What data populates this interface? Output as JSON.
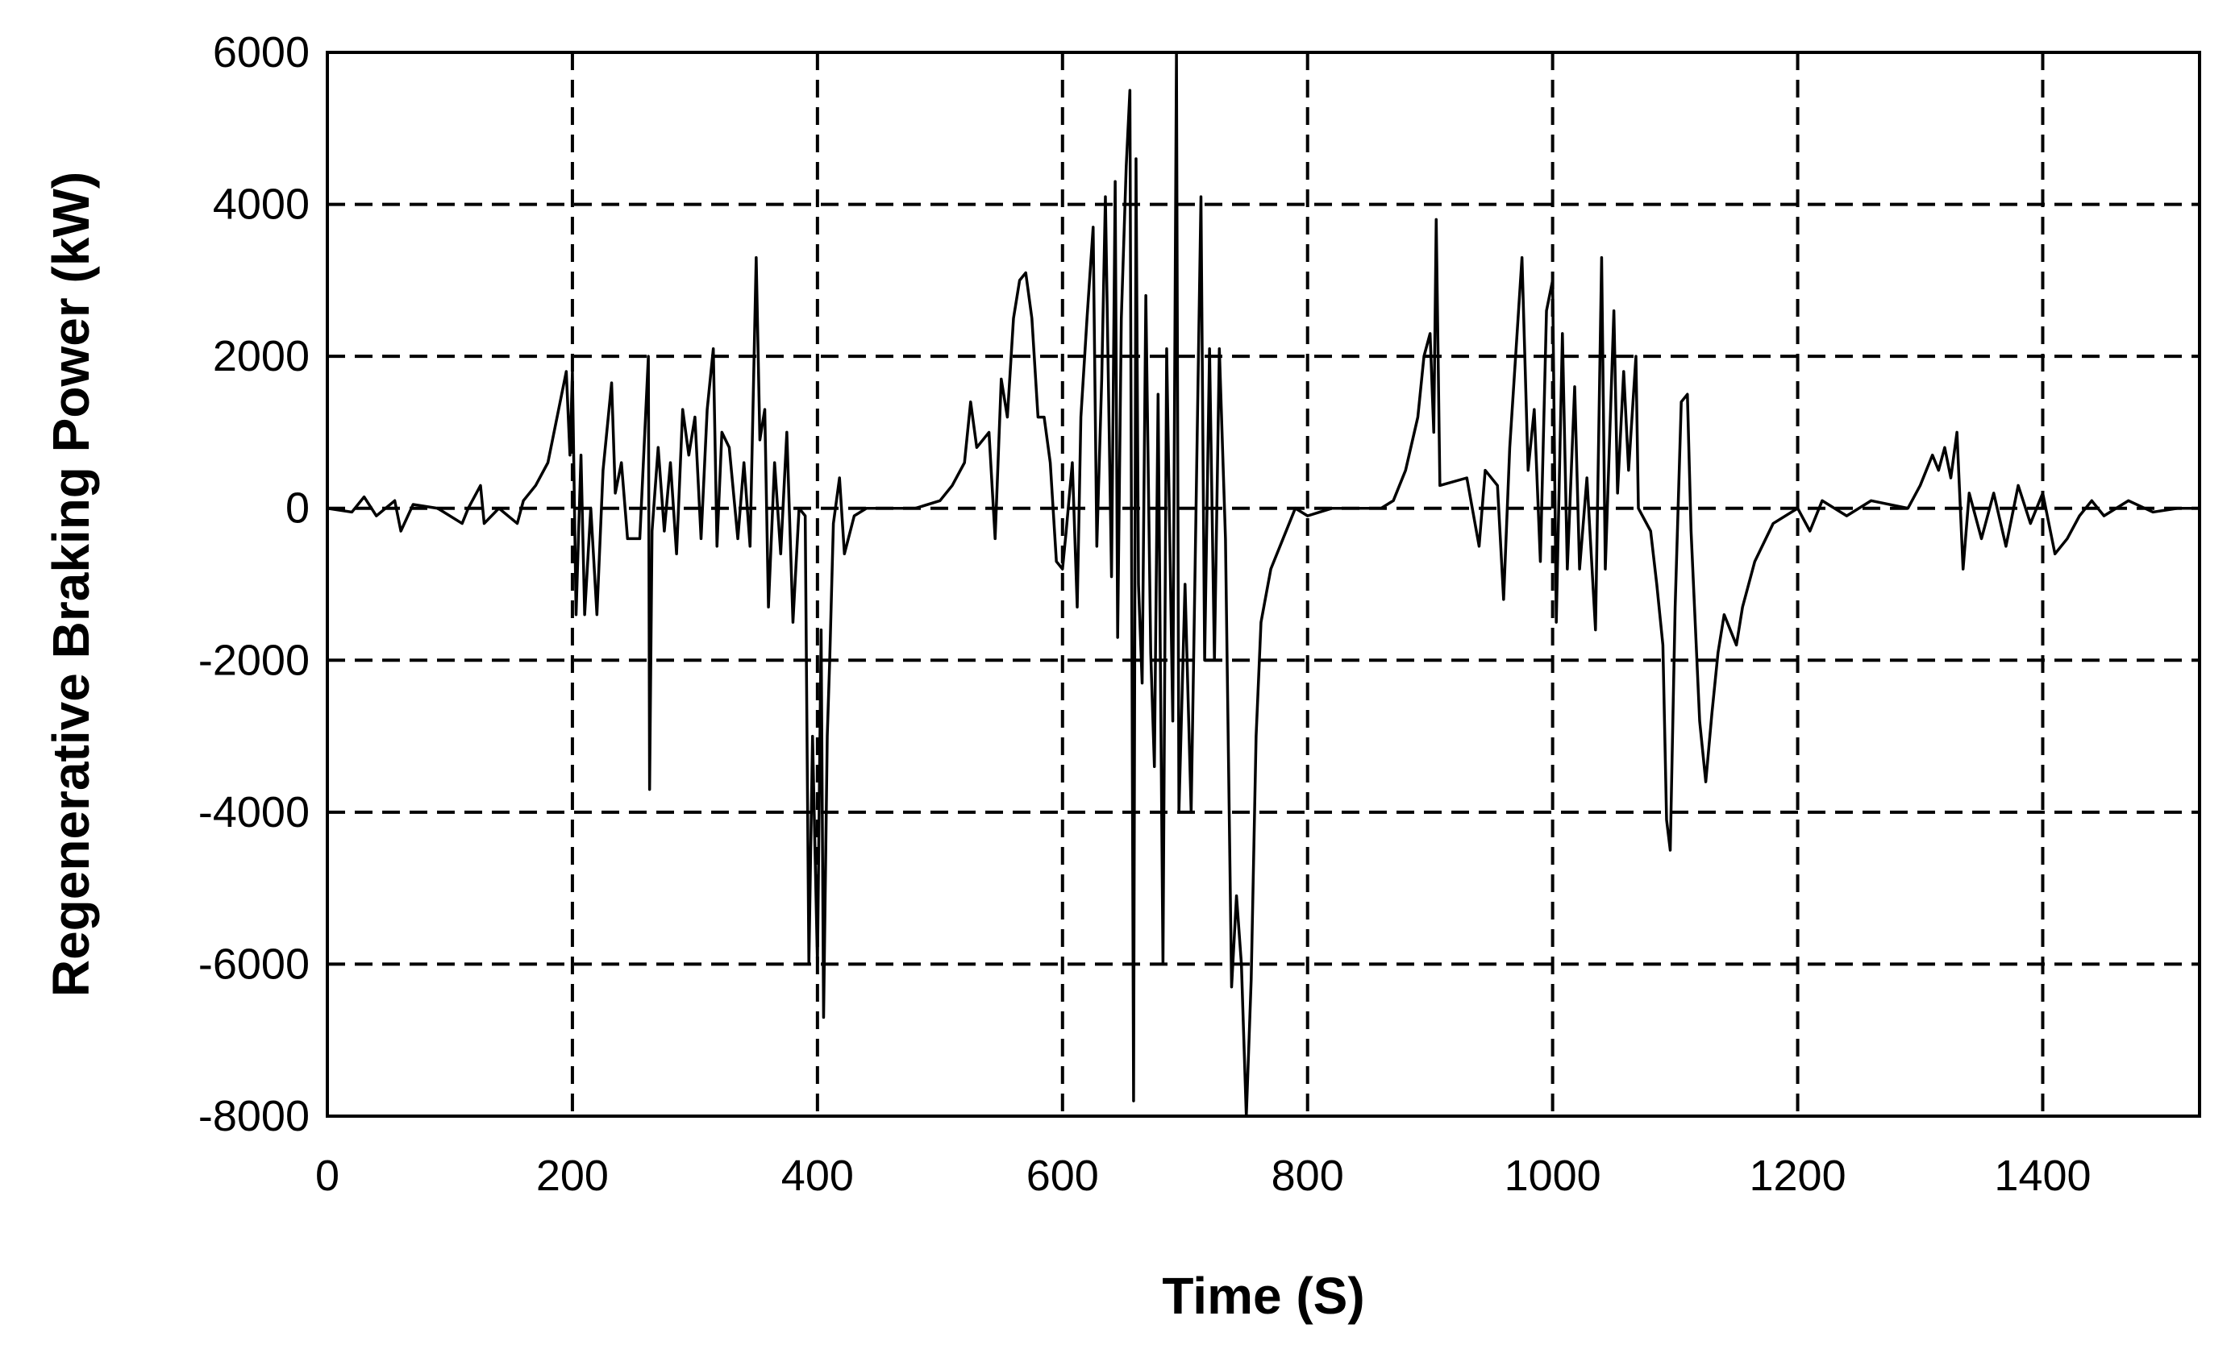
{
  "chart_data": {
    "type": "line",
    "xlabel": "Time (S)",
    "ylabel": "Regenerative Braking Power (kW)",
    "xlim": [
      0,
      1528
    ],
    "ylim": [
      -8000,
      6000
    ],
    "xticks": [
      0,
      200,
      400,
      600,
      800,
      1000,
      1200,
      1400
    ],
    "yticks": [
      -8000,
      -6000,
      -4000,
      -2000,
      0,
      2000,
      4000,
      6000
    ],
    "grid": true,
    "x": [
      0,
      20,
      30,
      40,
      55,
      60,
      70,
      90,
      110,
      115,
      125,
      128,
      140,
      155,
      160,
      170,
      180,
      190,
      195,
      198,
      200,
      203,
      207,
      210,
      215,
      220,
      225,
      232,
      235,
      240,
      245,
      255,
      262,
      263,
      265,
      270,
      275,
      280,
      285,
      290,
      295,
      300,
      305,
      310,
      315,
      318,
      322,
      328,
      335,
      340,
      345,
      350,
      353,
      357,
      360,
      365,
      370,
      375,
      380,
      385,
      390,
      393,
      396,
      400,
      403,
      405,
      408,
      410,
      413,
      418,
      422,
      430,
      440,
      480,
      500,
      510,
      520,
      525,
      530,
      540,
      545,
      550,
      555,
      560,
      565,
      570,
      575,
      580,
      585,
      590,
      595,
      600,
      603,
      608,
      612,
      615,
      620,
      625,
      628,
      632,
      635,
      640,
      643,
      645,
      648,
      652,
      655,
      658,
      660,
      662,
      665,
      668,
      672,
      675,
      678,
      682,
      685,
      690,
      693,
      695,
      700,
      705,
      708,
      713,
      716,
      720,
      724,
      728,
      733,
      738,
      742,
      746,
      750,
      754,
      758,
      762,
      770,
      780,
      790,
      800,
      820,
      860,
      870,
      880,
      890,
      895,
      900,
      903,
      905,
      908,
      930,
      940,
      945,
      955,
      960,
      965,
      975,
      980,
      985,
      990,
      995,
      1000,
      1003,
      1008,
      1012,
      1018,
      1022,
      1028,
      1035,
      1040,
      1043,
      1050,
      1053,
      1058,
      1062,
      1068,
      1070,
      1080,
      1085,
      1090,
      1093,
      1096,
      1100,
      1105,
      1110,
      1113,
      1120,
      1125,
      1130,
      1135,
      1140,
      1150,
      1155,
      1165,
      1180,
      1200,
      1210,
      1220,
      1240,
      1260,
      1290,
      1300,
      1310,
      1315,
      1320,
      1325,
      1330,
      1335,
      1340,
      1350,
      1360,
      1370,
      1380,
      1390,
      1400,
      1410,
      1420,
      1430,
      1440,
      1450,
      1470,
      1490,
      1510,
      1528
    ],
    "series": [
      {
        "name": "Regenerative Braking Power",
        "color": "#000000",
        "values": [
          0,
          -50,
          150,
          -100,
          100,
          -300,
          50,
          0,
          -200,
          0,
          300,
          -200,
          0,
          -200,
          100,
          300,
          600,
          1400,
          1800,
          700,
          1800,
          -1400,
          700,
          -1400,
          0,
          -1400,
          500,
          1650,
          200,
          600,
          -400,
          -400,
          2000,
          -3700,
          -300,
          800,
          -300,
          600,
          -600,
          1300,
          700,
          1200,
          -400,
          1300,
          2100,
          -500,
          1000,
          800,
          -400,
          600,
          -500,
          3300,
          900,
          1300,
          -1300,
          600,
          -600,
          1000,
          -1500,
          0,
          -100,
          -6000,
          -3000,
          -6000,
          -1600,
          -6700,
          -3000,
          -2000,
          -200,
          400,
          -600,
          -100,
          0,
          0,
          100,
          300,
          600,
          1400,
          800,
          1000,
          -400,
          1700,
          1200,
          2500,
          3000,
          3100,
          2500,
          1200,
          1200,
          600,
          -700,
          -800,
          -300,
          600,
          -1300,
          1200,
          2500,
          3700,
          -500,
          1700,
          4100,
          -900,
          4300,
          -1700,
          2500,
          4500,
          5500,
          -7800,
          4600,
          -1000,
          -2300,
          2800,
          -1900,
          -3400,
          1500,
          -6000,
          2100,
          -2800,
          6000,
          -4000,
          -1000,
          -4000,
          -1000,
          4100,
          -2000,
          2100,
          -2000,
          2100,
          -400,
          -6300,
          -5100,
          -6000,
          -8000,
          -6200,
          -3000,
          -1500,
          -800,
          -400,
          0,
          -100,
          0,
          0,
          100,
          500,
          1200,
          2000,
          2300,
          1000,
          3800,
          300,
          400,
          -500,
          500,
          300,
          -1200,
          800,
          3300,
          500,
          1300,
          -700,
          2600,
          3000,
          -1500,
          2300,
          -800,
          1600,
          -800,
          400,
          -1600,
          3300,
          -800,
          2600,
          200,
          1800,
          500,
          2000,
          0,
          -300,
          -1000,
          -1800,
          -4100,
          -4500,
          -1300,
          1400,
          1500,
          -300,
          -2800,
          -3600,
          -2700,
          -1900,
          -1400,
          -1800,
          -1300,
          -700,
          -200,
          0,
          -300,
          100,
          -100,
          100,
          0,
          300,
          700,
          500,
          800,
          400,
          1000,
          -800,
          200,
          -400,
          200,
          -500,
          300,
          -200,
          200,
          -600,
          -400,
          -100,
          100,
          -100,
          100,
          -50,
          0,
          0
        ]
      }
    ]
  }
}
